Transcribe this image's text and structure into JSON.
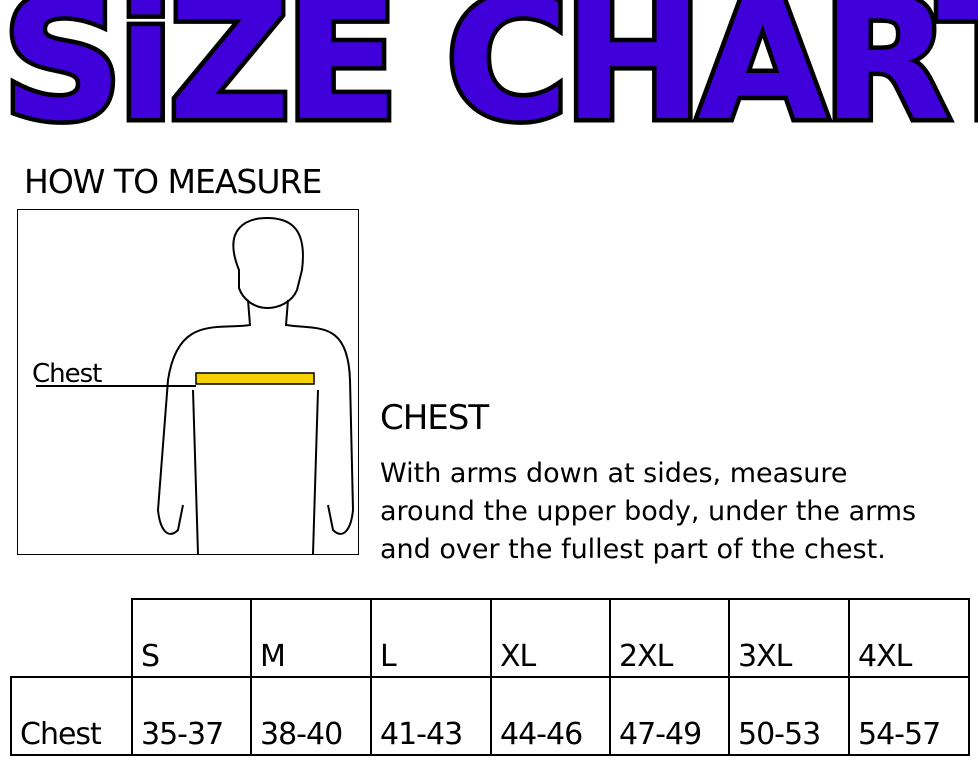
{
  "title": "SiZE CHART",
  "how_to_measure": "HOW TO MEASURE",
  "figure": {
    "label": "Chest",
    "tape_color": "#f5d100"
  },
  "chest": {
    "heading": "CHEST",
    "description": [
      "With arms down at sides, measure",
      "around the upper body, under the arms",
      "and over the fullest part of the chest."
    ]
  },
  "table": {
    "sizes": [
      "S",
      "M",
      "L",
      "XL",
      "2XL",
      "3XL",
      "4XL"
    ],
    "row_label": "Chest",
    "values": [
      "35-37",
      "38-40",
      "41-43",
      "44-46",
      "47-49",
      "50-53",
      "54-57"
    ]
  },
  "colors": {
    "title_fill": "#3f00d9",
    "title_outline": "#000000"
  }
}
